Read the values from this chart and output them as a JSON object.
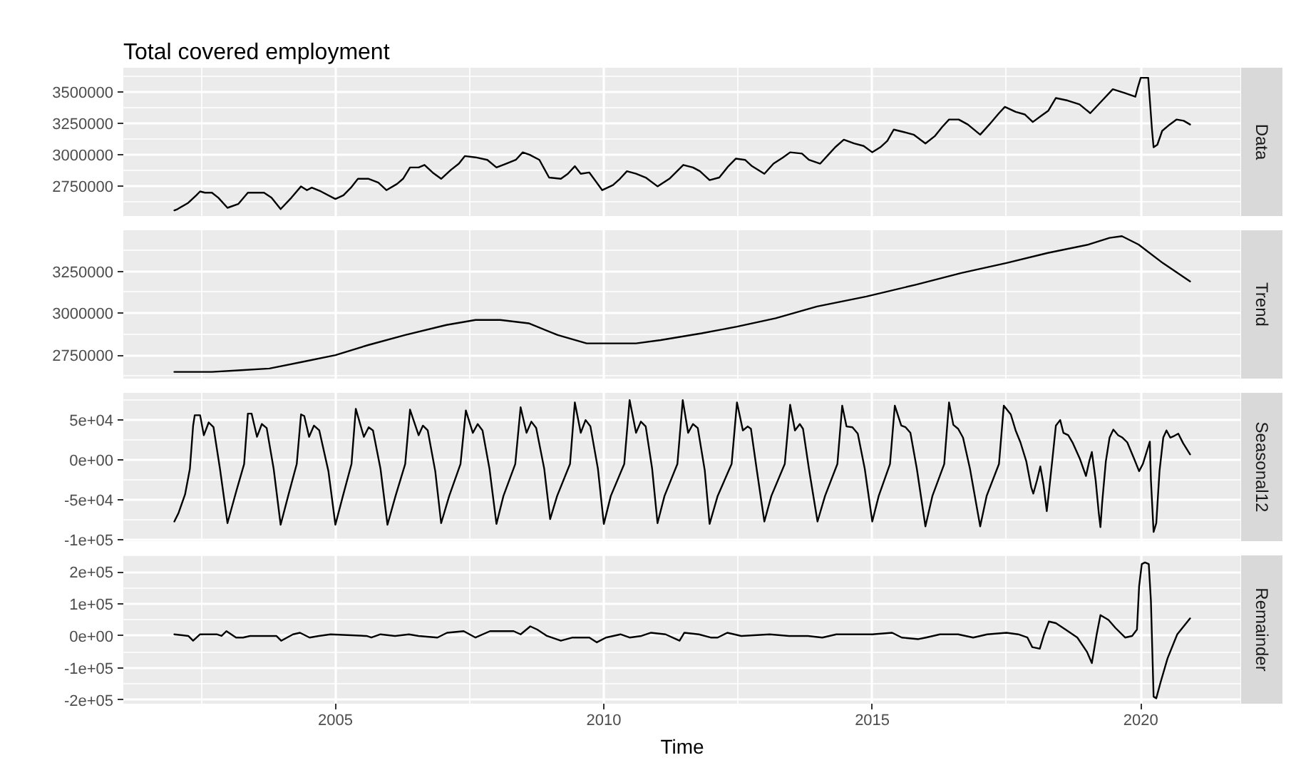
{
  "chart_data": [
    {
      "type": "line",
      "title": "Total covered employment",
      "xlim": [
        2001.05,
        2021.87
      ],
      "xticks": [
        2005,
        2010,
        2015,
        2020
      ],
      "ylim": [
        2515000,
        3690000
      ],
      "yticks": [
        2750000,
        3000000,
        3250000,
        3500000
      ],
      "grid": true,
      "tick_labels": "y",
      "series": [
        {
          "name": "Data",
          "color": "#000000",
          "x": [
            2002.0,
            2002.06,
            2002.26,
            2002.41,
            2002.48,
            2002.57,
            2002.7,
            2002.82,
            2002.99,
            2003.19,
            2003.37,
            2003.5,
            2003.67,
            2003.81,
            2003.98,
            2004.18,
            2004.36,
            2004.47,
            2004.56,
            2004.73,
            2005.0,
            2005.15,
            2005.29,
            2005.42,
            2005.62,
            2005.8,
            2005.95,
            2006.15,
            2006.26,
            2006.39,
            2006.55,
            2006.66,
            2006.81,
            2006.97,
            2007.15,
            2007.3,
            2007.41,
            2007.61,
            2007.83,
            2008.0,
            2008.18,
            2008.36,
            2008.49,
            2008.62,
            2008.8,
            2008.98,
            2009.2,
            2009.33,
            2009.46,
            2009.57,
            2009.73,
            2009.97,
            2010.17,
            2010.3,
            2010.43,
            2010.6,
            2010.78,
            2011.0,
            2011.22,
            2011.48,
            2011.66,
            2011.79,
            2011.97,
            2012.15,
            2012.32,
            2012.46,
            2012.63,
            2012.76,
            2012.99,
            2013.16,
            2013.34,
            2013.47,
            2013.69,
            2013.82,
            2014.03,
            2014.18,
            2014.31,
            2014.47,
            2014.66,
            2014.84,
            2015.0,
            2015.15,
            2015.28,
            2015.4,
            2015.59,
            2015.77,
            2015.99,
            2016.17,
            2016.3,
            2016.43,
            2016.61,
            2016.78,
            2017.01,
            2017.18,
            2017.36,
            2017.47,
            2017.67,
            2017.84,
            2017.99,
            2018.15,
            2018.28,
            2018.42,
            2018.64,
            2018.86,
            2019.06,
            2019.26,
            2019.48,
            2019.7,
            2019.9,
            2019.95,
            2020.0,
            2020.14,
            2020.21,
            2020.24,
            2020.31,
            2020.4,
            2020.54,
            2020.67,
            2020.8,
            2020.92
          ],
          "values": [
            2560000,
            2570000,
            2620000,
            2680000,
            2710000,
            2700000,
            2700000,
            2660000,
            2580000,
            2610000,
            2700000,
            2700000,
            2700000,
            2660000,
            2570000,
            2660000,
            2750000,
            2720000,
            2740000,
            2710000,
            2650000,
            2680000,
            2740000,
            2810000,
            2810000,
            2780000,
            2720000,
            2770000,
            2810000,
            2900000,
            2900000,
            2920000,
            2860000,
            2810000,
            2880000,
            2930000,
            2990000,
            2980000,
            2960000,
            2900000,
            2930000,
            2960000,
            3020000,
            3000000,
            2960000,
            2820000,
            2810000,
            2850000,
            2910000,
            2850000,
            2860000,
            2720000,
            2760000,
            2810000,
            2870000,
            2850000,
            2820000,
            2750000,
            2810000,
            2920000,
            2900000,
            2870000,
            2800000,
            2820000,
            2910000,
            2970000,
            2960000,
            2910000,
            2850000,
            2930000,
            2980000,
            3020000,
            3010000,
            2960000,
            2930000,
            3000000,
            3060000,
            3120000,
            3090000,
            3070000,
            3020000,
            3060000,
            3110000,
            3200000,
            3180000,
            3160000,
            3090000,
            3150000,
            3220000,
            3280000,
            3280000,
            3240000,
            3160000,
            3240000,
            3330000,
            3380000,
            3340000,
            3320000,
            3260000,
            3310000,
            3350000,
            3450000,
            3430000,
            3400000,
            3330000,
            3420000,
            3520000,
            3490000,
            3460000,
            3540000,
            3610000,
            3610000,
            3200000,
            3060000,
            3080000,
            3190000,
            3240000,
            3280000,
            3270000,
            3240000
          ]
        }
      ]
    },
    {
      "type": "line",
      "xlim": [
        2001.05,
        2021.87
      ],
      "xticks": [
        2005,
        2010,
        2015,
        2020
      ],
      "ylim": [
        2610000,
        3495000
      ],
      "yticks": [
        2750000,
        3000000,
        3250000
      ],
      "grid": true,
      "tick_labels": "y",
      "series": [
        {
          "name": "Trend",
          "color": "#000000",
          "x": [
            2002.0,
            2002.7,
            2003.24,
            2003.77,
            2004.39,
            2005.0,
            2005.61,
            2006.3,
            2007.07,
            2007.61,
            2008.07,
            2008.6,
            2009.14,
            2009.68,
            2010.14,
            2010.6,
            2011.06,
            2011.82,
            2012.48,
            2013.2,
            2013.97,
            2014.89,
            2015.81,
            2016.66,
            2017.5,
            2018.27,
            2019.03,
            2019.42,
            2019.65,
            2019.96,
            2020.41,
            2020.92
          ],
          "values": [
            2650000,
            2650000,
            2660000,
            2670000,
            2710000,
            2750000,
            2810000,
            2870000,
            2930000,
            2960000,
            2960000,
            2940000,
            2870000,
            2820000,
            2820000,
            2820000,
            2840000,
            2880000,
            2920000,
            2970000,
            3040000,
            3100000,
            3170000,
            3240000,
            3300000,
            3360000,
            3410000,
            3450000,
            3460000,
            3410000,
            3300000,
            3190000
          ]
        }
      ]
    },
    {
      "type": "line",
      "xlim": [
        2001.05,
        2021.87
      ],
      "xticks": [
        2005,
        2010,
        2015,
        2020
      ],
      "ylim": [
        -101500,
        84000
      ],
      "yticks": [
        {
          "value": -100000,
          "label": "-1e+05"
        },
        {
          "value": -50000,
          "label": "-5e+04"
        },
        {
          "value": 0,
          "label": "0e+00"
        },
        {
          "value": 50000,
          "label": "5e+04"
        }
      ],
      "grid": true,
      "tick_labels": "y",
      "series": [
        {
          "name": "Seasonal12",
          "color": "#000000",
          "x": [
            2002.0,
            2002.08,
            2002.2,
            2002.29,
            2002.35,
            2002.38,
            2002.48,
            2002.55,
            2002.64,
            2002.73,
            2002.85,
            2002.99,
            2003.15,
            2003.3,
            2003.37,
            2003.44,
            2003.54,
            2003.63,
            2003.72,
            2003.85,
            2003.98,
            2004.12,
            2004.28,
            2004.36,
            2004.42,
            2004.51,
            2004.6,
            2004.7,
            2004.87,
            2005.0,
            2005.14,
            2005.3,
            2005.38,
            2005.53,
            2005.62,
            2005.7,
            2005.84,
            2005.97,
            2006.12,
            2006.3,
            2006.39,
            2006.55,
            2006.63,
            2006.72,
            2006.86,
            2006.97,
            2007.12,
            2007.33,
            2007.43,
            2007.56,
            2007.65,
            2007.74,
            2007.87,
            2008.0,
            2008.13,
            2008.35,
            2008.45,
            2008.56,
            2008.65,
            2008.74,
            2008.89,
            2009.0,
            2009.13,
            2009.37,
            2009.46,
            2009.57,
            2009.66,
            2009.75,
            2009.89,
            2010.0,
            2010.13,
            2010.38,
            2010.48,
            2010.6,
            2010.69,
            2010.78,
            2010.9,
            2011.0,
            2011.13,
            2011.37,
            2011.47,
            2011.57,
            2011.66,
            2011.75,
            2011.88,
            2011.97,
            2012.12,
            2012.38,
            2012.48,
            2012.59,
            2012.68,
            2012.74,
            2012.85,
            2012.99,
            2013.12,
            2013.37,
            2013.47,
            2013.56,
            2013.65,
            2013.71,
            2013.82,
            2013.98,
            2014.12,
            2014.35,
            2014.44,
            2014.52,
            2014.63,
            2014.73,
            2014.86,
            2015.0,
            2015.12,
            2015.33,
            2015.42,
            2015.54,
            2015.62,
            2015.71,
            2015.83,
            2015.99,
            2016.12,
            2016.34,
            2016.43,
            2016.51,
            2016.6,
            2016.69,
            2016.82,
            2017.01,
            2017.13,
            2017.36,
            2017.45,
            2017.58,
            2017.67,
            2017.76,
            2017.87,
            2017.96,
            2018.0,
            2018.07,
            2018.13,
            2018.19,
            2018.25,
            2018.29,
            2018.36,
            2018.42,
            2018.5,
            2018.56,
            2018.65,
            2018.73,
            2018.87,
            2018.98,
            2019.04,
            2019.09,
            2019.16,
            2019.22,
            2019.25,
            2019.28,
            2019.35,
            2019.42,
            2019.49,
            2019.58,
            2019.66,
            2019.75,
            2019.88,
            2019.97,
            2020.04,
            2020.11,
            2020.17,
            2020.19,
            2020.24,
            2020.29,
            2020.35,
            2020.42,
            2020.48,
            2020.55,
            2020.62,
            2020.7,
            2020.79,
            2020.92
          ],
          "values": [
            -77000,
            -66000,
            -43000,
            -11000,
            43000,
            56000,
            56000,
            31000,
            47000,
            41000,
            -11000,
            -79000,
            -40000,
            -5000,
            58000,
            58000,
            29000,
            45000,
            40000,
            -11000,
            -81000,
            -45000,
            -5000,
            57000,
            55000,
            29000,
            43000,
            37000,
            -14000,
            -81000,
            -45000,
            -5000,
            64000,
            29000,
            41000,
            37000,
            -11000,
            -81000,
            -45000,
            -5000,
            63000,
            31000,
            43000,
            37000,
            -14000,
            -79000,
            -45000,
            -5000,
            62000,
            34000,
            45000,
            37000,
            -11000,
            -80000,
            -45000,
            -5000,
            66000,
            34000,
            48000,
            40000,
            -11000,
            -74000,
            -45000,
            -5000,
            72000,
            34000,
            50000,
            42000,
            -11000,
            -80000,
            -45000,
            -5000,
            75000,
            34000,
            48000,
            42000,
            -11000,
            -79000,
            -45000,
            -5000,
            75000,
            34000,
            45000,
            40000,
            -13000,
            -80000,
            -45000,
            -5000,
            72000,
            37000,
            42000,
            39000,
            -13000,
            -77000,
            -45000,
            -5000,
            69000,
            37000,
            45000,
            39000,
            -11000,
            -77000,
            -45000,
            -5000,
            68000,
            42000,
            41000,
            33000,
            -11000,
            -77000,
            -45000,
            -5000,
            68000,
            43000,
            41000,
            34000,
            -11000,
            -83000,
            -45000,
            -5000,
            72000,
            44000,
            39000,
            28000,
            -11000,
            -83000,
            -45000,
            -5000,
            68000,
            57000,
            37000,
            22000,
            -2000,
            -34000,
            -42000,
            -25000,
            -8000,
            -31000,
            -64000,
            -40000,
            4000,
            43000,
            50000,
            34000,
            31000,
            22000,
            1000,
            -20000,
            -2000,
            10000,
            -25000,
            -67000,
            -84000,
            -55000,
            -2000,
            28000,
            38000,
            31000,
            28000,
            22000,
            1000,
            -14000,
            -5000,
            10000,
            23000,
            -25000,
            -90000,
            -79000,
            -14000,
            28000,
            37000,
            28000,
            30000,
            33000,
            21000,
            7000
          ]
        }
      ]
    },
    {
      "type": "line",
      "xlabel": "Time",
      "xlim": [
        2001.05,
        2021.87
      ],
      "xticks": [
        2005,
        2010,
        2015,
        2020
      ],
      "ylim": [
        -212000,
        252000
      ],
      "yticks": [
        {
          "value": -200000,
          "label": "-2e+05"
        },
        {
          "value": -100000,
          "label": "-1e+05"
        },
        {
          "value": 0,
          "label": "0e+00"
        },
        {
          "value": 100000,
          "label": "1e+05"
        },
        {
          "value": 200000,
          "label": "2e+05"
        }
      ],
      "grid": true,
      "series": [
        {
          "name": "Remainder",
          "color": "#000000",
          "x": [
            2002.0,
            2002.26,
            2002.35,
            2002.48,
            2002.79,
            2002.88,
            2002.97,
            2003.15,
            2003.28,
            2003.41,
            2003.9,
            2003.99,
            2004.21,
            2004.34,
            2004.52,
            2004.69,
            2004.91,
            2005.58,
            2005.67,
            2005.84,
            2006.11,
            2006.37,
            2006.55,
            2006.9,
            2007.08,
            2007.39,
            2007.61,
            2007.88,
            2008.32,
            2008.45,
            2008.63,
            2008.76,
            2008.94,
            2009.2,
            2009.42,
            2009.56,
            2009.73,
            2009.87,
            2010.04,
            2010.31,
            2010.48,
            2010.7,
            2010.88,
            2011.15,
            2011.41,
            2011.5,
            2011.77,
            2011.99,
            2012.12,
            2012.3,
            2012.56,
            2013.09,
            2013.45,
            2013.8,
            2014.07,
            2014.33,
            2014.64,
            2015.0,
            2015.37,
            2015.55,
            2015.86,
            2016.0,
            2016.26,
            2016.6,
            2016.88,
            2017.14,
            2017.5,
            2017.72,
            2017.89,
            2017.98,
            2018.12,
            2018.2,
            2018.29,
            2018.42,
            2018.6,
            2018.82,
            2019.0,
            2019.09,
            2019.18,
            2019.25,
            2019.4,
            2019.53,
            2019.71,
            2019.84,
            2019.93,
            2019.97,
            2020.02,
            2020.08,
            2020.15,
            2020.19,
            2020.24,
            2020.29,
            2020.37,
            2020.5,
            2020.68,
            2020.92
          ],
          "values": [
            5000,
            0,
            -15000,
            5000,
            5000,
            0,
            15000,
            -5000,
            -5000,
            0,
            0,
            -15000,
            5000,
            10000,
            -5000,
            0,
            5000,
            0,
            -5000,
            5000,
            0,
            5000,
            0,
            -5000,
            10000,
            15000,
            -5000,
            15000,
            15000,
            5000,
            30000,
            20000,
            0,
            -15000,
            -5000,
            -5000,
            -5000,
            -20000,
            -5000,
            5000,
            -5000,
            0,
            10000,
            5000,
            -15000,
            10000,
            5000,
            -5000,
            -5000,
            10000,
            0,
            5000,
            0,
            0,
            -5000,
            5000,
            5000,
            5000,
            10000,
            -5000,
            -10000,
            -5000,
            5000,
            5000,
            -5000,
            5000,
            10000,
            5000,
            -5000,
            -35000,
            -40000,
            5000,
            45000,
            40000,
            20000,
            -5000,
            -50000,
            -85000,
            5000,
            65000,
            50000,
            25000,
            -5000,
            0,
            20000,
            155000,
            225000,
            230000,
            225000,
            110000,
            -190000,
            -195000,
            -145000,
            -70000,
            5000,
            55000
          ]
        }
      ]
    }
  ]
}
